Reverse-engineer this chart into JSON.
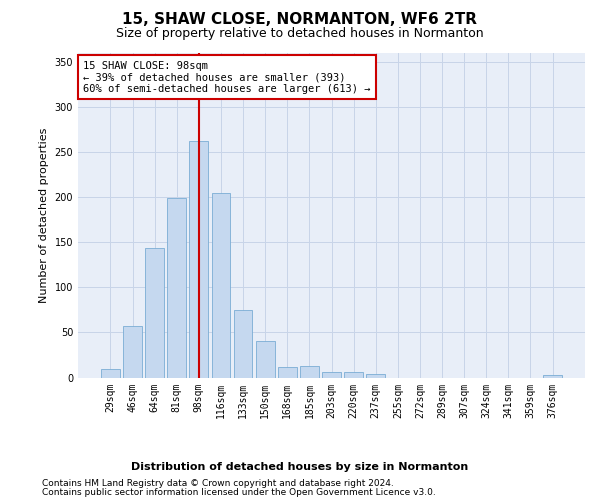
{
  "title": "15, SHAW CLOSE, NORMANTON, WF6 2TR",
  "subtitle": "Size of property relative to detached houses in Normanton",
  "xlabel_bottom": "Distribution of detached houses by size in Normanton",
  "ylabel": "Number of detached properties",
  "categories": [
    "29sqm",
    "46sqm",
    "64sqm",
    "81sqm",
    "98sqm",
    "116sqm",
    "133sqm",
    "150sqm",
    "168sqm",
    "185sqm",
    "203sqm",
    "220sqm",
    "237sqm",
    "255sqm",
    "272sqm",
    "289sqm",
    "307sqm",
    "324sqm",
    "341sqm",
    "359sqm",
    "376sqm"
  ],
  "values": [
    9,
    57,
    143,
    199,
    262,
    204,
    75,
    40,
    12,
    13,
    6,
    6,
    4,
    0,
    0,
    0,
    0,
    0,
    0,
    0,
    3
  ],
  "bar_color": "#c5d8ef",
  "bar_edge_color": "#7aadd4",
  "vline_x": 4,
  "vline_color": "#cc0000",
  "annotation_text": "15 SHAW CLOSE: 98sqm\n← 39% of detached houses are smaller (393)\n60% of semi-detached houses are larger (613) →",
  "annotation_box_color": "#ffffff",
  "annotation_box_edge_color": "#cc0000",
  "ylim": [
    0,
    360
  ],
  "yticks": [
    0,
    50,
    100,
    150,
    200,
    250,
    300,
    350
  ],
  "grid_color": "#c8d4e8",
  "background_color": "#e8eef8",
  "footnote1": "Contains HM Land Registry data © Crown copyright and database right 2024.",
  "footnote2": "Contains public sector information licensed under the Open Government Licence v3.0.",
  "title_fontsize": 11,
  "subtitle_fontsize": 9,
  "ylabel_fontsize": 8,
  "tick_fontsize": 7,
  "annotation_fontsize": 7.5,
  "xlabel_bottom_fontsize": 8,
  "footnote_fontsize": 6.5
}
